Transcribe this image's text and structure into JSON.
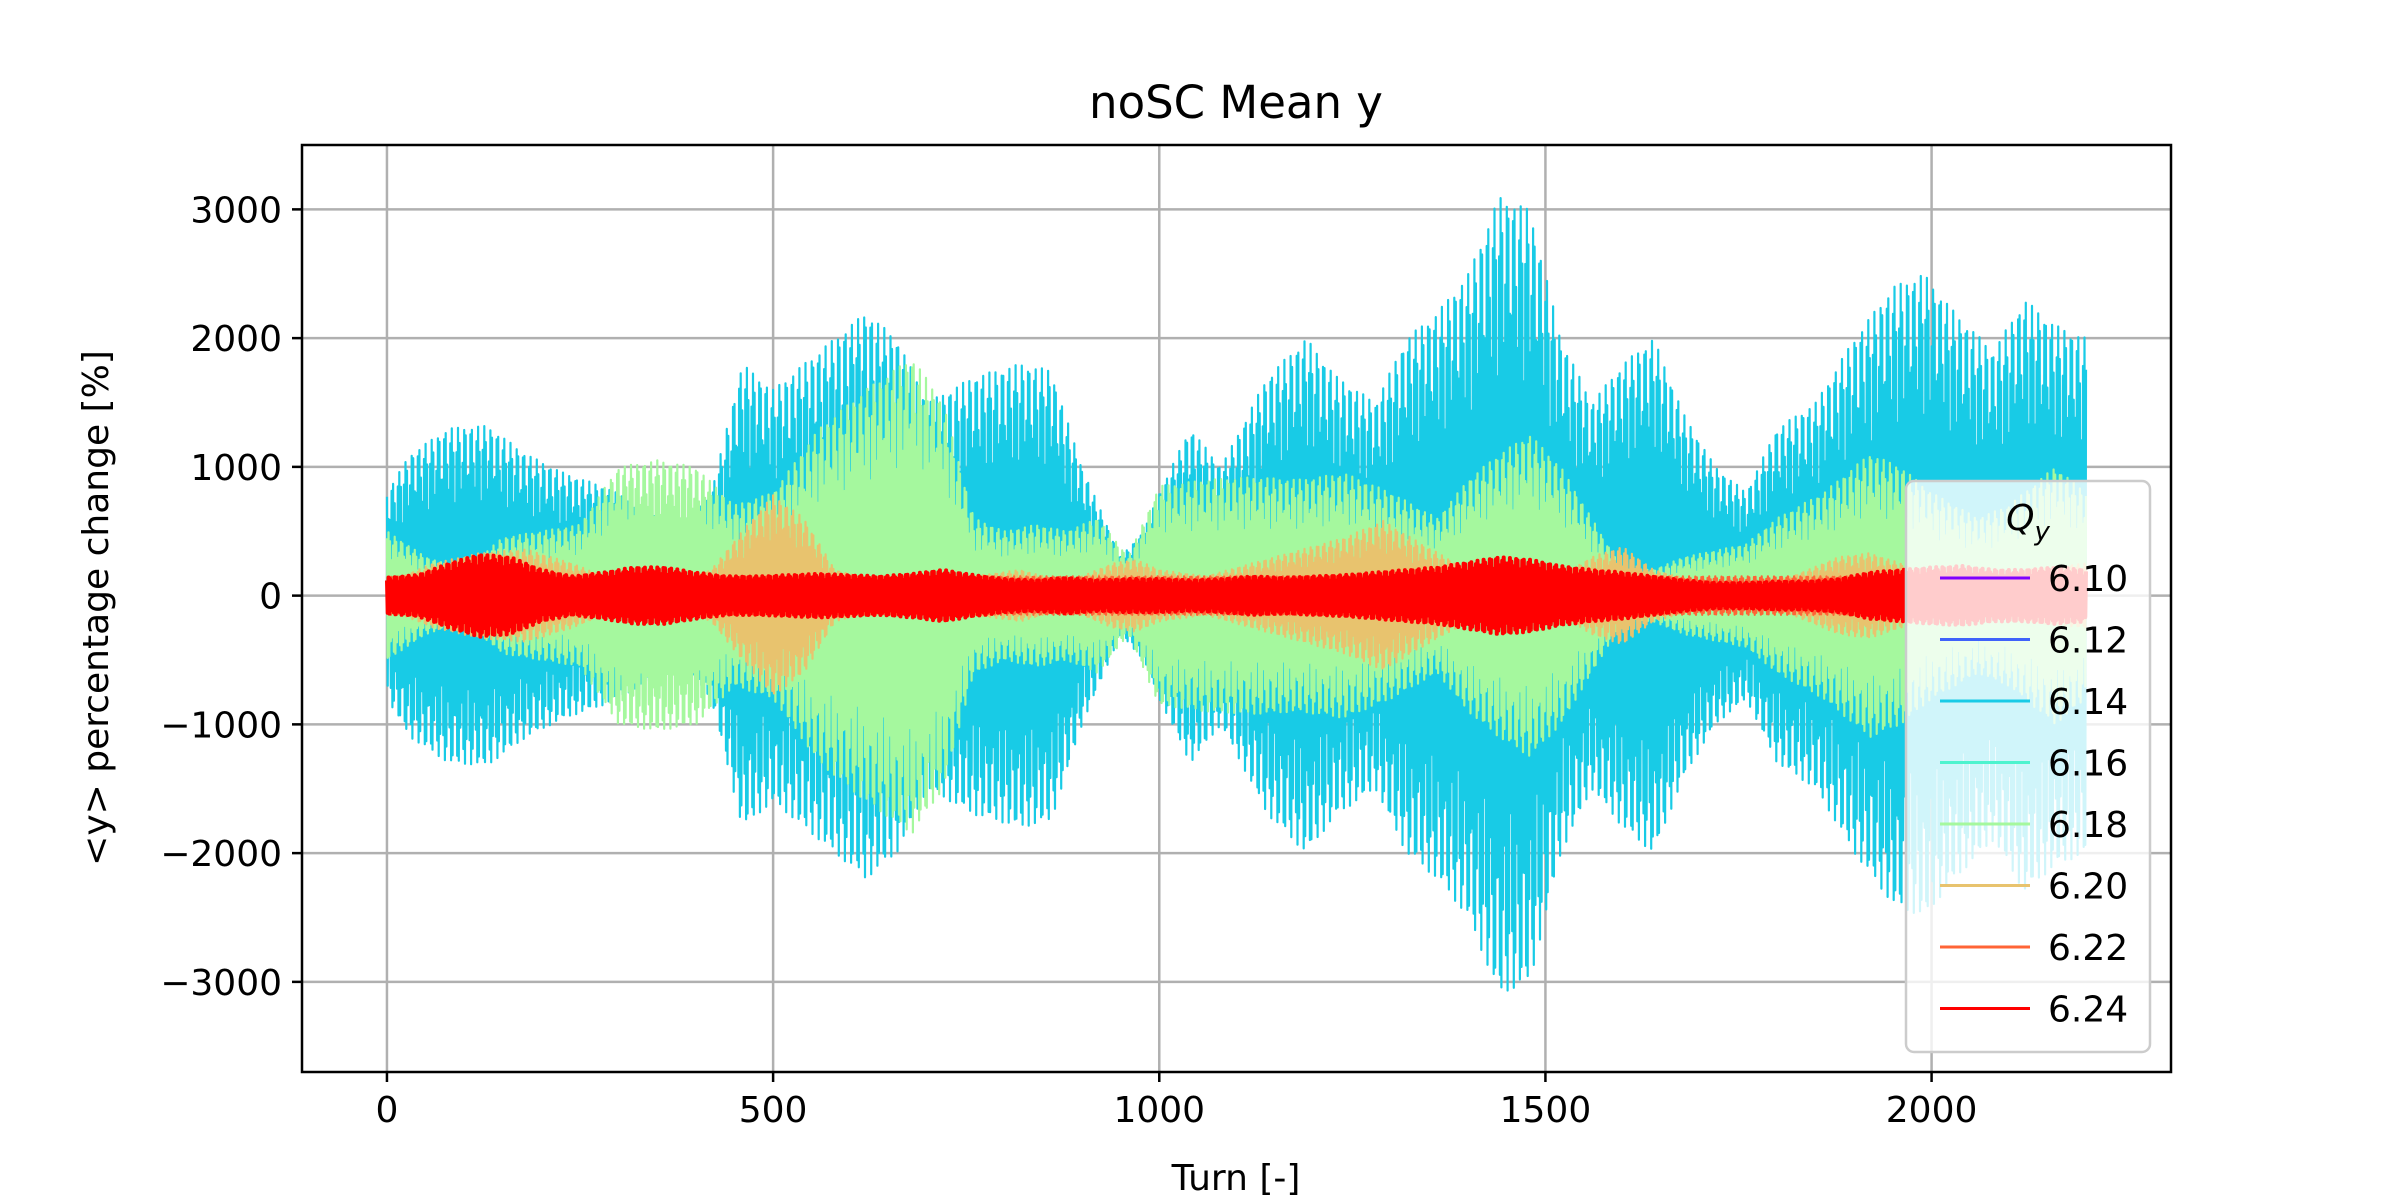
{
  "chart_data": {
    "type": "line",
    "title": "noSC Mean y",
    "xlabel": "Turn [-]",
    "ylabel": "<y> percentage change [%]",
    "xlim": [
      -110,
      2310
    ],
    "ylim": [
      -3700,
      3500
    ],
    "xticks": [
      0,
      500,
      1000,
      1500,
      2000
    ],
    "xtick_labels": [
      "0",
      "500",
      "1000",
      "1500",
      "2000"
    ],
    "yticks": [
      -3000,
      -2000,
      -1000,
      0,
      1000,
      2000,
      3000
    ],
    "ytick_labels": [
      "−3000",
      "−2000",
      "−1000",
      "0",
      "1000",
      "2000",
      "3000"
    ],
    "grid": true,
    "legend": {
      "title_base": "Q",
      "title_sub": "y",
      "placement": "center-right"
    },
    "x_max_turn": 2200,
    "series": [
      {
        "name": "6.10",
        "color": "#8000ff",
        "envelope": [
          [
            0,
            40
          ],
          [
            2200,
            40
          ]
        ]
      },
      {
        "name": "6.12",
        "color": "#4062fa",
        "envelope": [
          [
            0,
            40
          ],
          [
            2200,
            40
          ]
        ]
      },
      {
        "name": "6.14",
        "color": "#18cbe6",
        "envelope": [
          [
            0,
            800
          ],
          [
            30,
            1100
          ],
          [
            80,
            1300
          ],
          [
            130,
            1320
          ],
          [
            180,
            1100
          ],
          [
            230,
            950
          ],
          [
            280,
            850
          ],
          [
            330,
            700
          ],
          [
            380,
            500
          ],
          [
            420,
            800
          ],
          [
            460,
            1800
          ],
          [
            500,
            1600
          ],
          [
            560,
            1900
          ],
          [
            620,
            2200
          ],
          [
            660,
            2000
          ],
          [
            700,
            1500
          ],
          [
            760,
            1700
          ],
          [
            820,
            1800
          ],
          [
            860,
            1750
          ],
          [
            900,
            1000
          ],
          [
            950,
            300
          ],
          [
            980,
            500
          ],
          [
            1000,
            800
          ],
          [
            1040,
            1300
          ],
          [
            1080,
            1000
          ],
          [
            1140,
            1700
          ],
          [
            1190,
            2000
          ],
          [
            1230,
            1700
          ],
          [
            1280,
            1500
          ],
          [
            1320,
            2000
          ],
          [
            1360,
            2200
          ],
          [
            1400,
            2500
          ],
          [
            1440,
            3100
          ],
          [
            1480,
            3000
          ],
          [
            1520,
            2000
          ],
          [
            1560,
            1500
          ],
          [
            1600,
            1800
          ],
          [
            1640,
            2000
          ],
          [
            1680,
            1400
          ],
          [
            1720,
            1000
          ],
          [
            1760,
            800
          ],
          [
            1800,
            1300
          ],
          [
            1850,
            1500
          ],
          [
            1900,
            2000
          ],
          [
            1950,
            2400
          ],
          [
            1990,
            2500
          ],
          [
            2030,
            2200
          ],
          [
            2080,
            1900
          ],
          [
            2120,
            2300
          ],
          [
            2160,
            2100
          ],
          [
            2200,
            2000
          ]
        ]
      },
      {
        "name": "6.16",
        "color": "#4df3ce",
        "envelope": [
          [
            0,
            40
          ],
          [
            2200,
            40
          ]
        ]
      },
      {
        "name": "6.18",
        "color": "#a5f89e",
        "envelope": [
          [
            0,
            500
          ],
          [
            50,
            300
          ],
          [
            100,
            200
          ],
          [
            150,
            450
          ],
          [
            200,
            500
          ],
          [
            250,
            550
          ],
          [
            300,
            1000
          ],
          [
            350,
            1050
          ],
          [
            400,
            1000
          ],
          [
            450,
            700
          ],
          [
            500,
            800
          ],
          [
            560,
            1300
          ],
          [
            620,
            1600
          ],
          [
            680,
            1850
          ],
          [
            720,
            1500
          ],
          [
            760,
            600
          ],
          [
            800,
            500
          ],
          [
            840,
            550
          ],
          [
            880,
            500
          ],
          [
            920,
            600
          ],
          [
            960,
            300
          ],
          [
            1000,
            850
          ],
          [
            1060,
            900
          ],
          [
            1120,
            920
          ],
          [
            1180,
            900
          ],
          [
            1240,
            950
          ],
          [
            1300,
            800
          ],
          [
            1360,
            600
          ],
          [
            1400,
            900
          ],
          [
            1440,
            1100
          ],
          [
            1480,
            1250
          ],
          [
            1520,
            1000
          ],
          [
            1560,
            600
          ],
          [
            1600,
            200
          ],
          [
            1640,
            200
          ],
          [
            1680,
            300
          ],
          [
            1720,
            350
          ],
          [
            1760,
            400
          ],
          [
            1800,
            600
          ],
          [
            1860,
            800
          ],
          [
            1920,
            1100
          ],
          [
            1960,
            1000
          ],
          [
            2000,
            800
          ],
          [
            2060,
            600
          ],
          [
            2100,
            700
          ],
          [
            2160,
            1000
          ],
          [
            2200,
            800
          ]
        ]
      },
      {
        "name": "6.20",
        "color": "#e8c36e",
        "envelope": [
          [
            0,
            100
          ],
          [
            60,
            250
          ],
          [
            120,
            330
          ],
          [
            180,
            360
          ],
          [
            240,
            250
          ],
          [
            300,
            100
          ],
          [
            360,
            60
          ],
          [
            420,
            200
          ],
          [
            460,
            500
          ],
          [
            500,
            780
          ],
          [
            540,
            600
          ],
          [
            580,
            200
          ],
          [
            640,
            100
          ],
          [
            700,
            80
          ],
          [
            760,
            150
          ],
          [
            820,
            200
          ],
          [
            880,
            100
          ],
          [
            940,
            250
          ],
          [
            970,
            280
          ],
          [
            1000,
            200
          ],
          [
            1060,
            150
          ],
          [
            1120,
            250
          ],
          [
            1180,
            350
          ],
          [
            1240,
            450
          ],
          [
            1290,
            580
          ],
          [
            1340,
            400
          ],
          [
            1400,
            200
          ],
          [
            1460,
            100
          ],
          [
            1520,
            150
          ],
          [
            1560,
            300
          ],
          [
            1600,
            380
          ],
          [
            1640,
            200
          ],
          [
            1700,
            100
          ],
          [
            1760,
            60
          ],
          [
            1820,
            150
          ],
          [
            1880,
            300
          ],
          [
            1920,
            330
          ],
          [
            1960,
            250
          ],
          [
            2000,
            150
          ],
          [
            2060,
            100
          ],
          [
            2120,
            200
          ],
          [
            2200,
            250
          ]
        ]
      },
      {
        "name": "6.22",
        "color": "#ff6436",
        "envelope": [
          [
            0,
            150
          ],
          [
            2200,
            150
          ]
        ]
      },
      {
        "name": "6.24",
        "color": "#ff0000",
        "envelope": [
          [
            0,
            140
          ],
          [
            40,
            160
          ],
          [
            80,
            250
          ],
          [
            120,
            320
          ],
          [
            160,
            300
          ],
          [
            200,
            200
          ],
          [
            240,
            150
          ],
          [
            280,
            180
          ],
          [
            320,
            220
          ],
          [
            360,
            220
          ],
          [
            400,
            180
          ],
          [
            440,
            150
          ],
          [
            480,
            150
          ],
          [
            520,
            160
          ],
          [
            560,
            170
          ],
          [
            600,
            160
          ],
          [
            640,
            150
          ],
          [
            680,
            170
          ],
          [
            720,
            200
          ],
          [
            760,
            160
          ],
          [
            800,
            130
          ],
          [
            840,
            120
          ],
          [
            880,
            140
          ],
          [
            920,
            120
          ],
          [
            960,
            130
          ],
          [
            1000,
            130
          ],
          [
            1040,
            120
          ],
          [
            1080,
            130
          ],
          [
            1120,
            150
          ],
          [
            1160,
            140
          ],
          [
            1200,
            150
          ],
          [
            1240,
            160
          ],
          [
            1280,
            180
          ],
          [
            1320,
            200
          ],
          [
            1360,
            220
          ],
          [
            1400,
            260
          ],
          [
            1440,
            300
          ],
          [
            1480,
            280
          ],
          [
            1520,
            230
          ],
          [
            1560,
            200
          ],
          [
            1600,
            180
          ],
          [
            1640,
            150
          ],
          [
            1680,
            120
          ],
          [
            1720,
            100
          ],
          [
            1760,
            100
          ],
          [
            1800,
            110
          ],
          [
            1840,
            110
          ],
          [
            1880,
            130
          ],
          [
            1920,
            180
          ],
          [
            1960,
            200
          ],
          [
            2000,
            220
          ],
          [
            2040,
            230
          ],
          [
            2080,
            200
          ],
          [
            2120,
            200
          ],
          [
            2160,
            220
          ],
          [
            2200,
            200
          ]
        ]
      }
    ]
  }
}
